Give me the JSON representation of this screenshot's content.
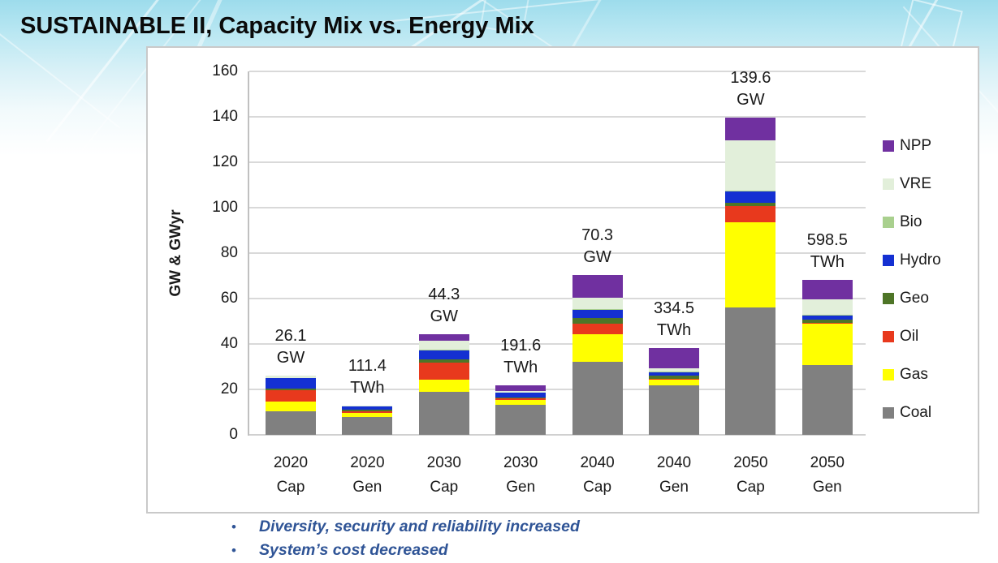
{
  "page": {
    "title": "SUSTAINABLE II, Capacity Mix vs. Energy Mix",
    "bullet_color": "#2F5496",
    "bullets": [
      "Diversity, security and reliability increased",
      "System’s cost decreased"
    ]
  },
  "chart_data": {
    "type": "bar",
    "stacked": true,
    "title": "",
    "xlabel": "",
    "ylabel": "GW & GWyr",
    "ylim": [
      0,
      160
    ],
    "ytick_step": 20,
    "grid": true,
    "legend_position": "right",
    "categories": [
      {
        "line1": "2020",
        "line2": "Cap"
      },
      {
        "line1": "2020",
        "line2": "Gen"
      },
      {
        "line1": "2030",
        "line2": "Cap"
      },
      {
        "line1": "2030",
        "line2": "Gen"
      },
      {
        "line1": "2040",
        "line2": "Cap"
      },
      {
        "line1": "2040",
        "line2": "Gen"
      },
      {
        "line1": "2050",
        "line2": "Cap"
      },
      {
        "line1": "2050",
        "line2": "Gen"
      }
    ],
    "bar_total_labels": [
      {
        "value": "26.1",
        "unit": "GW"
      },
      {
        "value": "111.4",
        "unit": "TWh"
      },
      {
        "value": "44.3",
        "unit": "GW"
      },
      {
        "value": "191.6",
        "unit": "TWh"
      },
      {
        "value": "70.3",
        "unit": "GW"
      },
      {
        "value": "334.5",
        "unit": "TWh"
      },
      {
        "value": "139.6",
        "unit": "GW"
      },
      {
        "value": "598.5",
        "unit": "TWh"
      }
    ],
    "series": [
      {
        "name": "Coal",
        "color": "#808080",
        "values": [
          10.5,
          7.8,
          18.9,
          13.3,
          32.3,
          21.9,
          56.0,
          30.6
        ]
      },
      {
        "name": "Gas",
        "color": "#FFFF00",
        "values": [
          4.0,
          1.7,
          5.4,
          2.0,
          11.9,
          2.3,
          37.7,
          18.4
        ]
      },
      {
        "name": "Oil",
        "color": "#E8391D",
        "values": [
          5.2,
          0.8,
          7.3,
          0.6,
          4.8,
          0.4,
          7.1,
          0.3
        ]
      },
      {
        "name": "Geo",
        "color": "#4E7527",
        "values": [
          0.8,
          0.7,
          1.7,
          0.6,
          2.3,
          1.4,
          1.5,
          1.5
        ]
      },
      {
        "name": "Hydro",
        "color": "#1430D2",
        "values": [
          4.4,
          1.4,
          4.0,
          1.9,
          3.8,
          1.6,
          4.8,
          1.8
        ]
      },
      {
        "name": "Bio",
        "color": "#A9D08E",
        "values": [
          0.2,
          0.1,
          0.2,
          0.2,
          0.2,
          0.2,
          0.3,
          0.2
        ]
      },
      {
        "name": "VRE",
        "color": "#E2EFDA",
        "values": [
          1.0,
          0.2,
          3.8,
          0.6,
          5.0,
          1.5,
          22.2,
          6.8
        ]
      },
      {
        "name": "NPP",
        "color": "#7030A0",
        "values": [
          0,
          0,
          3.0,
          2.7,
          10.0,
          8.9,
          10.0,
          8.7
        ]
      }
    ],
    "axis_text_color": "#1a1a1a",
    "gridline_color": "#d9d9d9"
  }
}
